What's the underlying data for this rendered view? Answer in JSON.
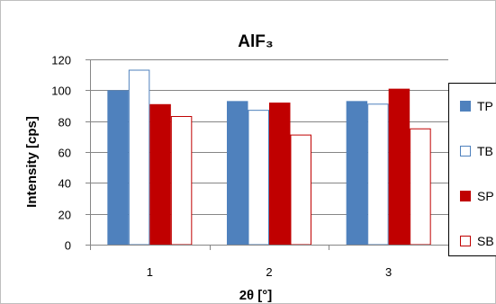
{
  "chart_data": {
    "type": "bar",
    "title": "AlF₃",
    "xlabel": "2θ [°]",
    "ylabel": "Intensity [cps]",
    "categories": [
      "1",
      "2",
      "3"
    ],
    "ylim": [
      0,
      120
    ],
    "yticks": [
      0,
      20,
      40,
      60,
      80,
      100,
      120
    ],
    "grid": true,
    "legend_position": "right",
    "series": [
      {
        "name": "TP",
        "values": [
          100,
          93,
          93
        ],
        "fill": "#4f81bd",
        "stroke": "#4f81bd",
        "hollow": false
      },
      {
        "name": "TB",
        "values": [
          113,
          87,
          91
        ],
        "fill": "#ffffff",
        "stroke": "#4f81bd",
        "hollow": true
      },
      {
        "name": "SP",
        "values": [
          91,
          92,
          101
        ],
        "fill": "#c00000",
        "stroke": "#c00000",
        "hollow": false
      },
      {
        "name": "SB",
        "values": [
          83,
          71,
          75
        ],
        "fill": "#ffffff",
        "stroke": "#c00000",
        "hollow": true
      }
    ]
  }
}
